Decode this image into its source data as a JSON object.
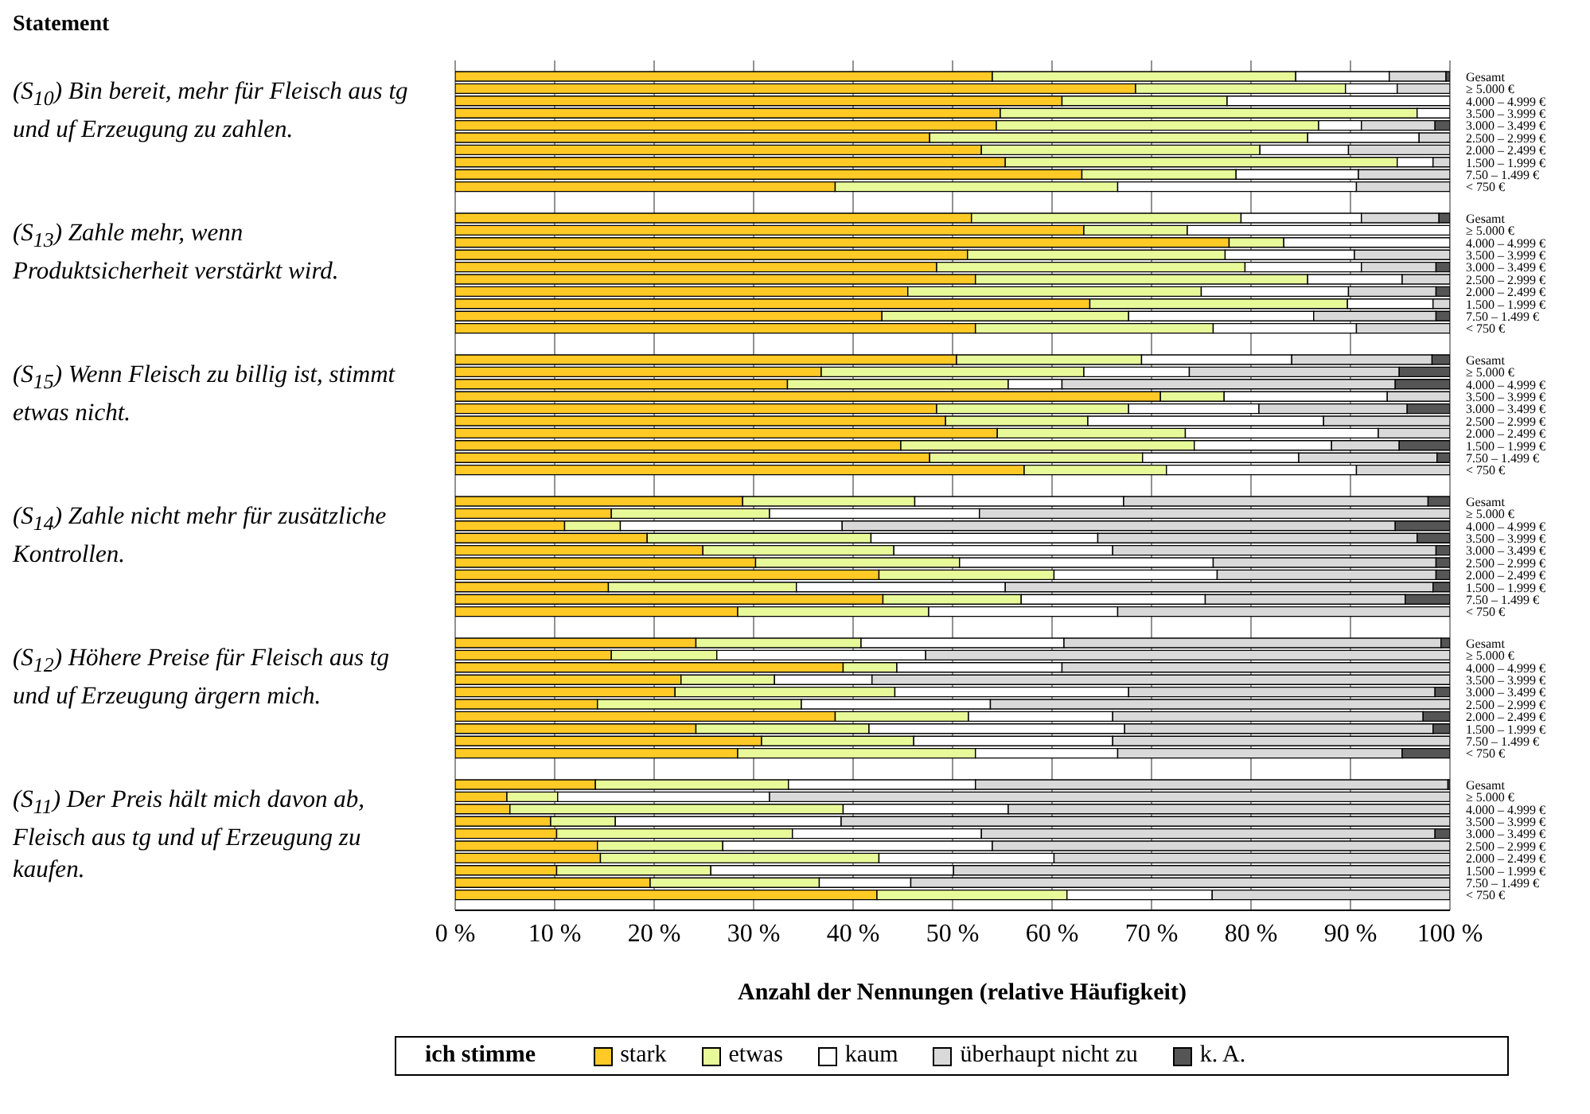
{
  "chart_data": [
    {
      "type": "bar",
      "orientation": "horizontal",
      "stacked": true,
      "title": "(S$_{10}$) Bin bereit, mehr für Fleisch aus tg und uf Erzeugung zu zahlen.",
      "annotations": [
        "Statement"
      ],
      "tick_labels": "y",
      "grid": "x",
      "xlim": [
        0,
        100
      ],
      "xticks": [
        0,
        10,
        20,
        30,
        40,
        50,
        60,
        70,
        80,
        90,
        100
      ],
      "categories": [
        "Gesamt",
        "≥ 5.000 €",
        "4.000 – 4.999 €",
        "3.500 – 3.999 €",
        "3.000 – 3.499 €",
        "2.500 – 2.999 €",
        "2.000 – 2.499 €",
        "1.500 – 1.999 €",
        "7.50 – 1.499 €",
        "< 750 €"
      ],
      "series": [
        {
          "color": "#ffc926",
          "values": [
            54.0,
            68.4,
            61.0,
            54.8,
            54.4,
            47.7,
            52.9,
            55.3,
            63.0,
            38.2
          ]
        },
        {
          "color": "#e8f99a",
          "values": [
            30.5,
            21.1,
            16.6,
            41.9,
            32.4,
            38.0,
            28.0,
            39.4,
            15.5,
            28.4
          ]
        },
        {
          "color": "#ffffff",
          "values": [
            9.4,
            5.2,
            22.4,
            3.3,
            4.3,
            11.2,
            8.9,
            3.6,
            12.3,
            24.0
          ]
        },
        {
          "color": "#d9d9d9",
          "values": [
            5.7,
            5.3,
            0,
            0,
            7.4,
            3.1,
            10.2,
            1.7,
            9.2,
            9.4
          ]
        },
        {
          "color": "#555555",
          "values": [
            0.4,
            0,
            0,
            0,
            1.5,
            0,
            0,
            0,
            0,
            0
          ]
        }
      ]
    },
    {
      "type": "bar",
      "orientation": "horizontal",
      "stacked": true,
      "title": "(S$_{13}$) Zahle mehr, wenn Produktsicherheit verstärkt wird.",
      "tick_labels": "y",
      "grid": "x",
      "xlim": [
        0,
        100
      ],
      "xticks": [
        0,
        10,
        20,
        30,
        40,
        50,
        60,
        70,
        80,
        90,
        100
      ],
      "categories": [
        "Gesamt",
        "≥ 5.000 €",
        "4.000 – 4.999 €",
        "3.500 – 3.999 €",
        "3.000 – 3.499 €",
        "2.500 – 2.999 €",
        "2.000 – 2.499 €",
        "1.500 – 1.999 €",
        "7.50 – 1.499 €",
        "< 750 €"
      ],
      "series": [
        {
          "color": "#ffc926",
          "values": [
            51.9,
            63.2,
            77.8,
            51.5,
            48.4,
            52.3,
            45.5,
            63.8,
            42.9,
            52.3
          ]
        },
        {
          "color": "#e8f99a",
          "values": [
            27.1,
            10.4,
            5.5,
            25.9,
            31.0,
            33.4,
            29.5,
            25.9,
            24.8,
            23.9
          ]
        },
        {
          "color": "#ffffff",
          "values": [
            12.1,
            26.4,
            16.7,
            13.0,
            11.7,
            9.5,
            14.8,
            8.6,
            18.6,
            14.4
          ]
        },
        {
          "color": "#d9d9d9",
          "values": [
            7.8,
            0,
            0,
            9.6,
            7.5,
            4.8,
            8.8,
            1.7,
            12.3,
            9.4
          ]
        },
        {
          "color": "#555555",
          "values": [
            1.1,
            0,
            0,
            0,
            1.4,
            0,
            1.4,
            0,
            1.4,
            0
          ]
        }
      ]
    },
    {
      "type": "bar",
      "orientation": "horizontal",
      "stacked": true,
      "title": "(S$_{15}$) Wenn Fleisch zu billig ist, stimmt etwas nicht.",
      "tick_labels": "y",
      "grid": "x",
      "xlim": [
        0,
        100
      ],
      "xticks": [
        0,
        10,
        20,
        30,
        40,
        50,
        60,
        70,
        80,
        90,
        100
      ],
      "categories": [
        "Gesamt",
        "≥ 5.000 €",
        "4.000 – 4.999 €",
        "3.500 – 3.999 €",
        "3.000 – 3.499 €",
        "2.500 – 2.999 €",
        "2.000 – 2.499 €",
        "1.500 – 1.999 €",
        "7.50 – 1.499 €",
        "< 750 €"
      ],
      "series": [
        {
          "color": "#ffc926",
          "values": [
            50.4,
            36.8,
            33.4,
            70.9,
            48.4,
            49.3,
            54.5,
            44.8,
            47.7,
            57.2
          ]
        },
        {
          "color": "#e8f99a",
          "values": [
            18.6,
            26.4,
            22.2,
            6.4,
            19.3,
            14.3,
            18.9,
            29.5,
            21.4,
            14.3
          ]
        },
        {
          "color": "#ffffff",
          "values": [
            15.1,
            10.6,
            5.4,
            16.4,
            13.1,
            23.7,
            19.4,
            13.8,
            15.7,
            19.1
          ]
        },
        {
          "color": "#d9d9d9",
          "values": [
            14.1,
            21.1,
            33.5,
            6.3,
            14.9,
            12.7,
            7.2,
            6.8,
            13.9,
            9.4
          ]
        },
        {
          "color": "#555555",
          "values": [
            1.8,
            5.1,
            5.5,
            0,
            4.3,
            0,
            0,
            5.1,
            1.3,
            0
          ]
        }
      ]
    },
    {
      "type": "bar",
      "orientation": "horizontal",
      "stacked": true,
      "title": "(S$_{14}$) Zahle nicht mehr für zusätzliche Kontrollen.",
      "tick_labels": "y",
      "grid": "x",
      "xlim": [
        0,
        100
      ],
      "xticks": [
        0,
        10,
        20,
        30,
        40,
        50,
        60,
        70,
        80,
        90,
        100
      ],
      "categories": [
        "Gesamt",
        "≥ 5.000 €",
        "4.000 – 4.999 €",
        "3.500 – 3.999 €",
        "3.000 – 3.499 €",
        "2.500 – 2.999 €",
        "2.000 – 2.499 €",
        "1.500 – 1.999 €",
        "7.50 – 1.499 €",
        "< 750 €"
      ],
      "series": [
        {
          "color": "#ffc926",
          "values": [
            28.9,
            15.7,
            11.0,
            19.3,
            24.9,
            30.2,
            42.6,
            15.4,
            43.0,
            28.4
          ]
        },
        {
          "color": "#e8f99a",
          "values": [
            17.3,
            15.9,
            5.6,
            22.5,
            19.2,
            20.5,
            17.6,
            18.9,
            13.9,
            19.2
          ]
        },
        {
          "color": "#ffffff",
          "values": [
            21.0,
            21.1,
            22.3,
            22.8,
            22.0,
            25.5,
            16.4,
            21.0,
            18.5,
            19.0
          ]
        },
        {
          "color": "#d9d9d9",
          "values": [
            30.6,
            47.3,
            55.6,
            32.1,
            32.5,
            22.4,
            22.0,
            43.0,
            20.1,
            33.4
          ]
        },
        {
          "color": "#555555",
          "values": [
            2.2,
            0,
            5.5,
            3.3,
            1.4,
            1.4,
            1.4,
            1.7,
            4.5,
            0
          ]
        }
      ]
    },
    {
      "type": "bar",
      "orientation": "horizontal",
      "stacked": true,
      "title": "(S$_{12}$) Höhere Preise für Fleisch aus tg und uf Erzeugung ärgern mich.",
      "tick_labels": "y",
      "grid": "x",
      "xlim": [
        0,
        100
      ],
      "xticks": [
        0,
        10,
        20,
        30,
        40,
        50,
        60,
        70,
        80,
        90,
        100
      ],
      "categories": [
        "Gesamt",
        "≥ 5.000 €",
        "4.000 – 4.999 €",
        "3.500 – 3.999 €",
        "3.000 – 3.499 €",
        "2.500 – 2.999 €",
        "2.000 – 2.499 €",
        "1.500 – 1.999 €",
        "7.50 – 1.499 €",
        "< 750 €"
      ],
      "series": [
        {
          "color": "#ffc926",
          "values": [
            24.2,
            15.7,
            39.0,
            22.7,
            22.1,
            14.3,
            38.2,
            24.2,
            30.8,
            28.4
          ]
        },
        {
          "color": "#e8f99a",
          "values": [
            16.6,
            10.6,
            5.4,
            9.4,
            22.1,
            20.5,
            13.4,
            17.4,
            15.3,
            23.9
          ]
        },
        {
          "color": "#ffffff",
          "values": [
            20.4,
            21.0,
            16.6,
            9.8,
            23.5,
            19.0,
            14.5,
            25.7,
            20.0,
            14.3
          ]
        },
        {
          "color": "#d9d9d9",
          "values": [
            37.9,
            52.7,
            39.0,
            58.1,
            30.8,
            46.2,
            31.2,
            31.0,
            33.9,
            28.6
          ]
        },
        {
          "color": "#555555",
          "values": [
            0.9,
            0,
            0,
            0,
            1.5,
            0,
            2.7,
            1.7,
            0,
            4.8
          ]
        }
      ]
    },
    {
      "type": "bar",
      "orientation": "horizontal",
      "stacked": true,
      "title": "(S$_{11}$) Der Preis hält mich davon ab, Fleisch aus tg und uf Erzeugung zu kaufen.",
      "xlabel": "Anzahl der Nennungen (relative Häufigkeit)",
      "legend": "bottom",
      "legend_title": "ich stimme",
      "grid": "x",
      "xlim": [
        0,
        100
      ],
      "xticks": [
        {
          "value": 0,
          "label": "0 %"
        },
        {
          "value": 10,
          "label": "10 %"
        },
        {
          "value": 20,
          "label": "20 %"
        },
        {
          "value": 30,
          "label": "30 %"
        },
        {
          "value": 40,
          "label": "40 %"
        },
        {
          "value": 50,
          "label": "50 %"
        },
        {
          "value": 60,
          "label": "60 %"
        },
        {
          "value": 70,
          "label": "70 %"
        },
        {
          "value": 80,
          "label": "80 %"
        },
        {
          "value": 90,
          "label": "90 %"
        },
        {
          "value": 100,
          "label": "100 %"
        }
      ],
      "categories": [
        "Gesamt",
        "≥ 5.000 €",
        "4.000 – 4.999 €",
        "3.500 – 3.999 €",
        "3.000 – 3.499 €",
        "2.500 – 2.999 €",
        "2.000 – 2.499 €",
        "1.500 – 1.999 €",
        "7.50 – 1.499 €",
        "< 750 €"
      ],
      "series": [
        {
          "name": "stark",
          "color": "#ffc926",
          "values": [
            14.1,
            5.2,
            5.5,
            9.6,
            10.2,
            14.3,
            14.6,
            10.2,
            19.6,
            42.4
          ]
        },
        {
          "name": "etwas",
          "color": "#e8f99a",
          "values": [
            19.4,
            5.1,
            33.5,
            6.5,
            23.7,
            12.6,
            28.0,
            15.5,
            17.0,
            19.1
          ]
        },
        {
          "name": "kaum",
          "color": "#ffffff",
          "values": [
            18.8,
            21.3,
            16.6,
            22.7,
            19.0,
            27.1,
            17.6,
            24.4,
            9.2,
            14.6
          ]
        },
        {
          "name": "überhaupt nicht zu",
          "color": "#d9d9d9",
          "values": [
            47.5,
            68.4,
            44.4,
            61.2,
            45.6,
            46.0,
            39.8,
            49.9,
            54.2,
            23.9
          ]
        },
        {
          "name": "k. A.",
          "color": "#555555",
          "values": [
            0.2,
            0,
            0,
            0,
            1.5,
            0,
            0,
            0,
            0,
            0
          ]
        }
      ]
    }
  ]
}
